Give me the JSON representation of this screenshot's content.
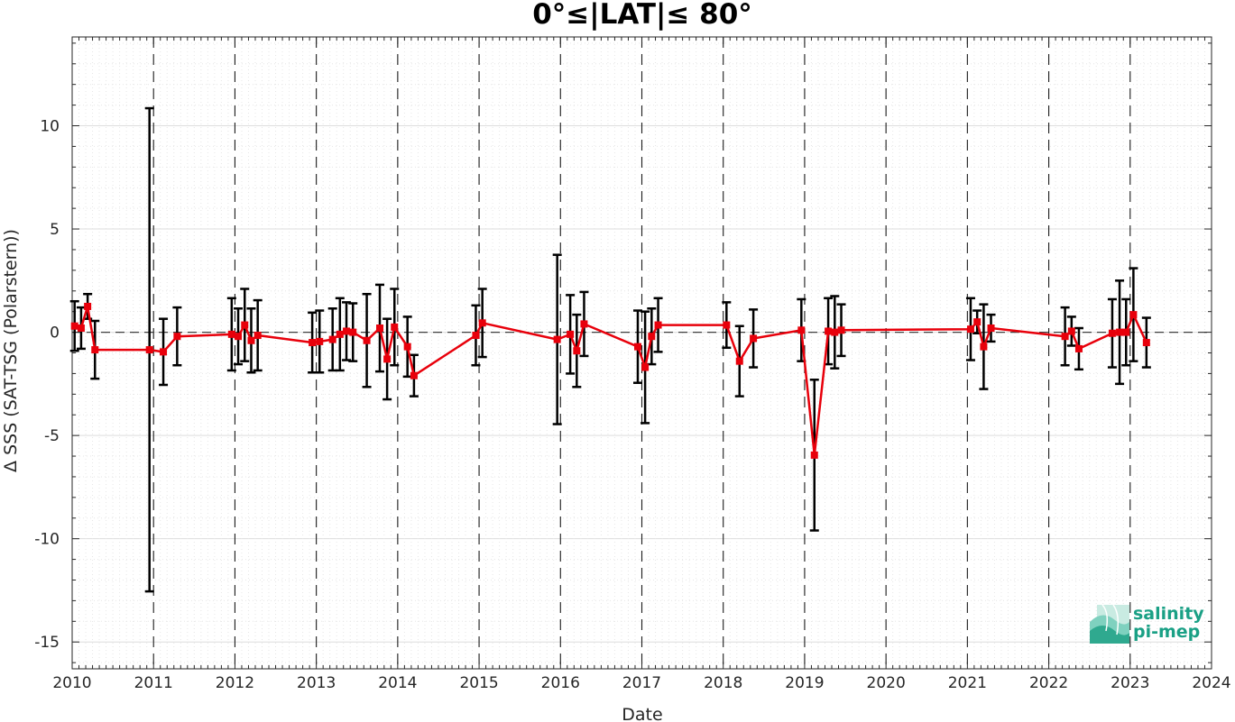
{
  "chart_data": {
    "type": "line",
    "title": "0°≤|LAT|≤ 80°",
    "xlabel": "Date",
    "ylabel": "Δ SSS (SAT-TSG (Polarstern))",
    "xlim": [
      2010,
      2024
    ],
    "ylim": [
      -16.3,
      14.3
    ],
    "x_ticks": [
      "2010",
      "2011",
      "2012",
      "2013",
      "2014",
      "2015",
      "2016",
      "2017",
      "2018",
      "2019",
      "2020",
      "2021",
      "2022",
      "2023",
      "2024"
    ],
    "y_ticks": [
      "10",
      "5",
      "0",
      "-5",
      "-10",
      "-15"
    ],
    "grid": true,
    "year_boundary_lines": "dashed",
    "zero_reference_line": "dashed",
    "series": [
      {
        "color": "#e8000b",
        "marker": "square",
        "errorbar_color": "#000000",
        "points": [
          {
            "x": 2010.03,
            "y": 0.3,
            "err": 1.2
          },
          {
            "x": 2010.11,
            "y": 0.2,
            "err": 1.0
          },
          {
            "x": 2010.19,
            "y": 1.25,
            "err": 0.6
          },
          {
            "x": 2010.28,
            "y": -0.85,
            "err": 1.4
          },
          {
            "x": 2010.95,
            "y": -0.85,
            "err": 11.7
          },
          {
            "x": 2011.12,
            "y": -0.95,
            "err": 1.6
          },
          {
            "x": 2011.29,
            "y": -0.2,
            "err": 1.4
          },
          {
            "x": 2011.96,
            "y": -0.1,
            "err": 1.75
          },
          {
            "x": 2012.04,
            "y": -0.2,
            "err": 1.35
          },
          {
            "x": 2012.12,
            "y": 0.35,
            "err": 1.75
          },
          {
            "x": 2012.2,
            "y": -0.4,
            "err": 1.55
          },
          {
            "x": 2012.28,
            "y": -0.15,
            "err": 1.7
          },
          {
            "x": 2012.95,
            "y": -0.5,
            "err": 1.45
          },
          {
            "x": 2013.04,
            "y": -0.45,
            "err": 1.5
          },
          {
            "x": 2013.2,
            "y": -0.35,
            "err": 1.5
          },
          {
            "x": 2013.29,
            "y": -0.1,
            "err": 1.75
          },
          {
            "x": 2013.37,
            "y": 0.05,
            "err": 1.4
          },
          {
            "x": 2013.45,
            "y": 0.0,
            "err": 1.4
          },
          {
            "x": 2013.62,
            "y": -0.4,
            "err": 2.25
          },
          {
            "x": 2013.78,
            "y": 0.2,
            "err": 2.1
          },
          {
            "x": 2013.87,
            "y": -1.3,
            "err": 1.95
          },
          {
            "x": 2013.96,
            "y": 0.25,
            "err": 1.85
          },
          {
            "x": 2014.12,
            "y": -0.7,
            "err": 1.45
          },
          {
            "x": 2014.2,
            "y": -2.1,
            "err": 1.0
          },
          {
            "x": 2014.96,
            "y": -0.15,
            "err": 1.45
          },
          {
            "x": 2015.04,
            "y": 0.45,
            "err": 1.65
          },
          {
            "x": 2015.96,
            "y": -0.35,
            "err": 4.1
          },
          {
            "x": 2016.12,
            "y": -0.1,
            "err": 1.9
          },
          {
            "x": 2016.2,
            "y": -0.9,
            "err": 1.75
          },
          {
            "x": 2016.29,
            "y": 0.4,
            "err": 1.55
          },
          {
            "x": 2016.95,
            "y": -0.7,
            "err": 1.75
          },
          {
            "x": 2017.04,
            "y": -1.7,
            "err": 2.7
          },
          {
            "x": 2017.12,
            "y": -0.2,
            "err": 1.35
          },
          {
            "x": 2017.2,
            "y": 0.35,
            "err": 1.3
          },
          {
            "x": 2018.04,
            "y": 0.35,
            "err": 1.1
          },
          {
            "x": 2018.2,
            "y": -1.4,
            "err": 1.7
          },
          {
            "x": 2018.37,
            "y": -0.3,
            "err": 1.4
          },
          {
            "x": 2018.96,
            "y": 0.1,
            "err": 1.5
          },
          {
            "x": 2019.12,
            "y": -5.95,
            "err": 3.65
          },
          {
            "x": 2019.29,
            "y": 0.05,
            "err": 1.6
          },
          {
            "x": 2019.37,
            "y": 0.0,
            "err": 1.75
          },
          {
            "x": 2019.45,
            "y": 0.1,
            "err": 1.25
          },
          {
            "x": 2021.04,
            "y": 0.15,
            "err": 1.5
          },
          {
            "x": 2021.12,
            "y": 0.5,
            "err": 0.55
          },
          {
            "x": 2021.2,
            "y": -0.7,
            "err": 2.05
          },
          {
            "x": 2021.29,
            "y": 0.2,
            "err": 0.65
          },
          {
            "x": 2022.2,
            "y": -0.2,
            "err": 1.4
          },
          {
            "x": 2022.28,
            "y": 0.05,
            "err": 0.7
          },
          {
            "x": 2022.37,
            "y": -0.8,
            "err": 1.0
          },
          {
            "x": 2022.78,
            "y": -0.05,
            "err": 1.65
          },
          {
            "x": 2022.87,
            "y": 0.0,
            "err": 2.5
          },
          {
            "x": 2022.95,
            "y": 0.0,
            "err": 1.6
          },
          {
            "x": 2023.04,
            "y": 0.85,
            "err": 2.25
          },
          {
            "x": 2023.2,
            "y": -0.5,
            "err": 1.2
          }
        ]
      }
    ]
  },
  "logo": {
    "line1": "salinity",
    "line2": "pi-mep",
    "color": "#1aa085"
  }
}
